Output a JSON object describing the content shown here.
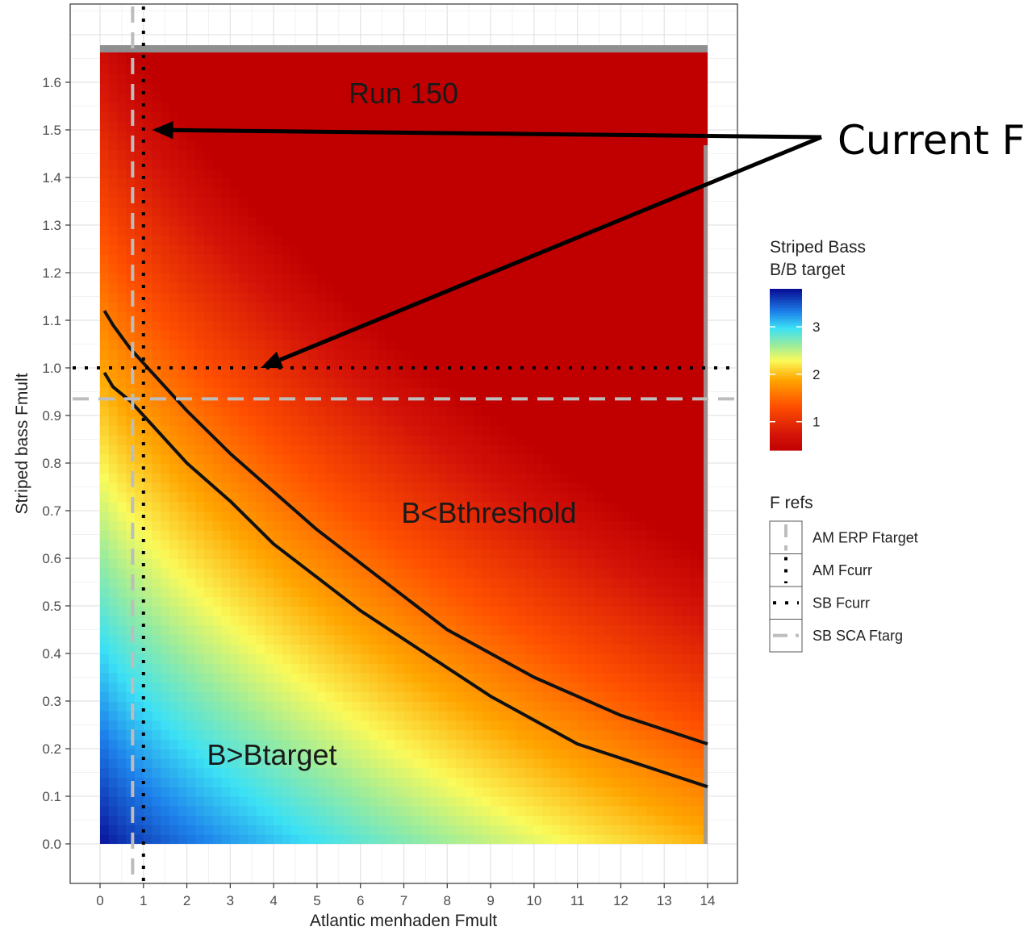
{
  "chart_data": {
    "type": "heatmap",
    "title": "Run 150",
    "xlabel": "Atlantic menhaden Fmult",
    "ylabel": "Striped bass Fmult",
    "xlim": [
      0,
      14
    ],
    "ylim": [
      0,
      1.68
    ],
    "x_ticks": [
      "0",
      "1",
      "2",
      "3",
      "4",
      "5",
      "6",
      "7",
      "8",
      "9",
      "10",
      "11",
      "12",
      "13",
      "14"
    ],
    "y_ticks": [
      "0.0",
      "0.1",
      "0.2",
      "0.3",
      "0.4",
      "0.5",
      "0.6",
      "0.7",
      "0.8",
      "0.9",
      "1.0",
      "1.1",
      "1.2",
      "1.3",
      "1.4",
      "1.5",
      "1.6"
    ],
    "grid": true,
    "region_labels": [
      {
        "text": "B<Bthreshold",
        "x": 9,
        "y": 0.7
      },
      {
        "text": "B>Btarget",
        "x": 3.9,
        "y": 0.19
      }
    ],
    "contours": [
      {
        "level": "threshold",
        "points": [
          [
            0.1,
            1.12
          ],
          [
            0.3,
            1.09
          ],
          [
            0.7,
            1.04
          ],
          [
            1,
            1.01
          ],
          [
            1.5,
            0.96
          ],
          [
            2,
            0.91
          ],
          [
            3,
            0.82
          ],
          [
            4,
            0.74
          ],
          [
            5,
            0.66
          ],
          [
            6,
            0.59
          ],
          [
            7,
            0.52
          ],
          [
            8,
            0.45
          ],
          [
            9,
            0.4
          ],
          [
            10,
            0.35
          ],
          [
            11,
            0.31
          ],
          [
            12,
            0.27
          ],
          [
            13,
            0.24
          ],
          [
            14,
            0.21
          ]
        ]
      },
      {
        "level": "target",
        "points": [
          [
            0.1,
            0.99
          ],
          [
            0.3,
            0.96
          ],
          [
            0.7,
            0.93
          ],
          [
            1,
            0.9
          ],
          [
            1.5,
            0.85
          ],
          [
            2,
            0.8
          ],
          [
            3,
            0.72
          ],
          [
            4,
            0.63
          ],
          [
            5,
            0.56
          ],
          [
            6,
            0.49
          ],
          [
            7,
            0.43
          ],
          [
            8,
            0.37
          ],
          [
            9,
            0.31
          ],
          [
            10,
            0.26
          ],
          [
            11,
            0.21
          ],
          [
            12,
            0.18
          ],
          [
            13,
            0.15
          ],
          [
            14,
            0.12
          ]
        ]
      }
    ],
    "reference_lines": [
      {
        "name": "AM ERP Ftarget",
        "axis": "x",
        "value": 0.75,
        "style": "dashed",
        "color": "#bdbdbd"
      },
      {
        "name": "AM Fcurr",
        "axis": "x",
        "value": 1.0,
        "style": "dotted",
        "color": "#000000"
      },
      {
        "name": "SB Fcurr",
        "axis": "y",
        "value": 1.0,
        "style": "dotted",
        "color": "#000000"
      },
      {
        "name": "SB SCA Ftarg",
        "axis": "y",
        "value": 0.935,
        "style": "dashed",
        "color": "#bdbdbd"
      }
    ],
    "colorbar": {
      "title_line1": "Striped Bass",
      "title_line2": "B/B target",
      "ticks": [
        "1",
        "2",
        "3"
      ],
      "range": [
        0.4,
        3.8
      ],
      "colors": [
        "#d7191c",
        "#ff7f00",
        "#ffff66",
        "#44d6ff",
        "#1f6fe0",
        "#07109a"
      ]
    },
    "legend": {
      "title": "F refs",
      "placement": "right",
      "entries": [
        "AM ERP Ftarget",
        "AM Fcurr",
        "SB Fcurr",
        "SB SCA Ftarg"
      ]
    },
    "annotation": {
      "text": "Current F",
      "arrows_to": [
        [
          1.2,
          1.5
        ],
        [
          3.7,
          1.0
        ]
      ]
    }
  }
}
